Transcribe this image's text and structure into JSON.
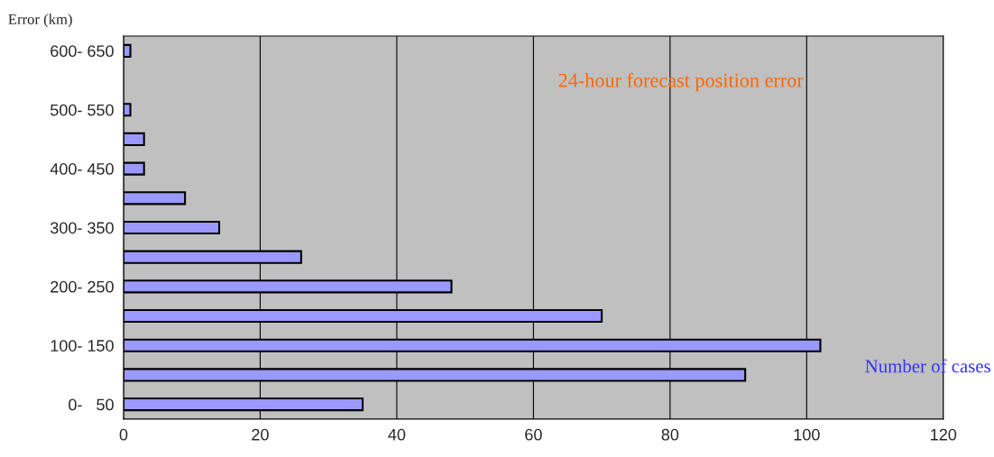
{
  "chart_data": {
    "type": "bar",
    "orientation": "horizontal",
    "title": "24-hour forecast position error",
    "xlabel": "Number of cases",
    "ylabel": "Error (km)",
    "categories": [
      "600- 650",
      null,
      "500- 550",
      null,
      "400- 450",
      null,
      "300- 350",
      null,
      "200- 250",
      null,
      "100- 150",
      null,
      "0-   50"
    ],
    "values": [
      1,
      0,
      1,
      3,
      3,
      9,
      14,
      26,
      48,
      70,
      102,
      91,
      35
    ],
    "color": "#9999ff",
    "xlim": [
      0,
      120
    ],
    "xticks": [
      0,
      20,
      40,
      60,
      80,
      100,
      120
    ],
    "grid": "x"
  }
}
